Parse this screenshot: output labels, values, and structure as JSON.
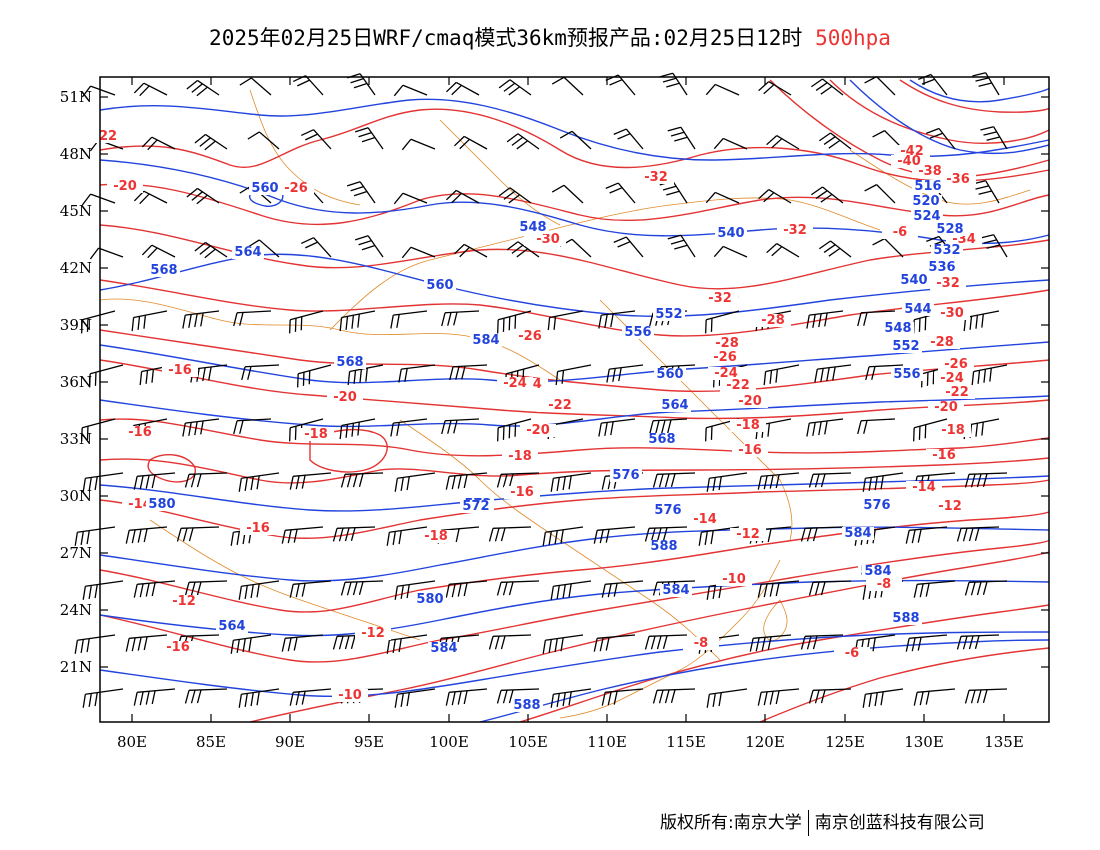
{
  "title": {
    "main": "2025年02月25日WRF/cmaq模式36km预报产品:02月25日12时",
    "level": "500hpa"
  },
  "axes": {
    "lat_labels": [
      "51N",
      "48N",
      "45N",
      "42N",
      "39N",
      "36N",
      "33N",
      "30N",
      "27N",
      "24N",
      "21N"
    ],
    "lon_labels": [
      "80E",
      "85E",
      "90E",
      "95E",
      "100E",
      "105E",
      "110E",
      "115E",
      "120E",
      "125E",
      "130E",
      "135E"
    ]
  },
  "colors": {
    "temperature_contour": "#e33333",
    "height_contour": "#2244dd",
    "boundary": "#e08a2a",
    "wind_barb": "#000000"
  },
  "temperature_labels": [
    "22",
    "-20",
    "-26",
    "-16",
    "-16",
    "-14",
    "-16",
    "-12",
    "-16",
    "-12",
    "-10",
    "-20",
    "-18",
    "-32",
    "-30",
    "-28",
    "-24",
    "-22",
    "-20",
    "-18",
    "-16",
    "-14",
    "-12",
    "-10",
    "-8",
    "-6",
    "-34",
    "-32",
    "-30",
    "-28",
    "-26",
    "-24",
    "-22",
    "-20",
    "-18",
    "-16",
    "-14",
    "-12",
    "-8",
    "-6",
    "-42",
    "-40",
    "-38",
    "-36",
    "-34",
    "-32",
    "-30",
    "-28",
    "-26",
    "-24",
    "-22",
    "-20",
    "-18",
    "-16",
    "-14",
    "-12",
    "-18",
    "-22",
    "-24",
    "-26",
    "-28",
    "-32",
    "-30"
  ],
  "height_labels": [
    "560",
    "564",
    "568",
    "560",
    "568",
    "584",
    "580",
    "564",
    "584",
    "588",
    "560",
    "552",
    "548",
    "540",
    "556",
    "560",
    "564",
    "568",
    "572",
    "576",
    "580",
    "584",
    "588",
    "516",
    "520",
    "524",
    "528",
    "532",
    "536",
    "540",
    "544",
    "548",
    "552",
    "556",
    "576",
    "580",
    "584",
    "588",
    "584",
    "576",
    "572",
    "576"
  ],
  "footer": {
    "left": "版权所有:南京大学",
    "right": "南京创蓝科技有限公司"
  }
}
